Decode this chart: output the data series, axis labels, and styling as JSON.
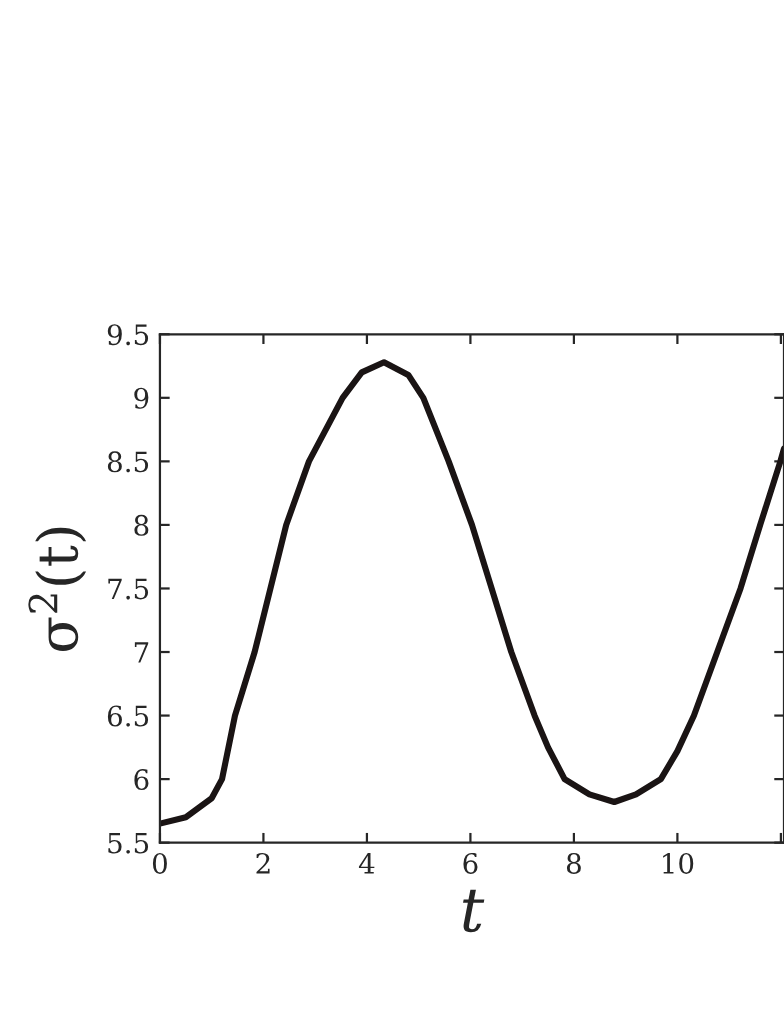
{
  "chart_data": {
    "type": "line",
    "xlabel": "t",
    "ylabel": "σ$^{2}$(t)",
    "x": [
      0,
      0.5,
      1,
      1.2,
      1.45,
      1.83,
      2.44,
      2.88,
      3.53,
      3.9,
      4.33,
      4.8,
      5.09,
      5.58,
      6.03,
      6.41,
      6.79,
      7.24,
      7.5,
      7.82,
      8.3,
      8.78,
      9.2,
      9.68,
      10,
      10.32,
      10.77,
      11.22,
      11.6,
      11.99,
      12.06
    ],
    "series": [
      {
        "color": "#1a1414",
        "values": [
          5.65,
          5.7,
          5.85,
          6.0,
          6.5,
          7.0,
          8.0,
          8.5,
          9.0,
          9.2,
          9.28,
          9.18,
          9.0,
          8.5,
          8.0,
          7.5,
          7.0,
          6.5,
          6.25,
          6.0,
          5.88,
          5.82,
          5.88,
          6.0,
          6.22,
          6.5,
          7.0,
          7.5,
          8.0,
          8.5,
          8.6
        ]
      }
    ],
    "xlim": [
      0,
      12.06
    ],
    "xticks": [
      0,
      2,
      4,
      6,
      8,
      10,
      {
        "value": 12,
        "label": null
      }
    ],
    "ylim": [
      5.5,
      9.5
    ],
    "yticks": [
      5.5,
      6,
      6.5,
      7,
      7.5,
      8,
      8.5,
      9,
      9.5
    ],
    "grid": false,
    "legend": false,
    "marker": "none",
    "line_style": "solid"
  }
}
